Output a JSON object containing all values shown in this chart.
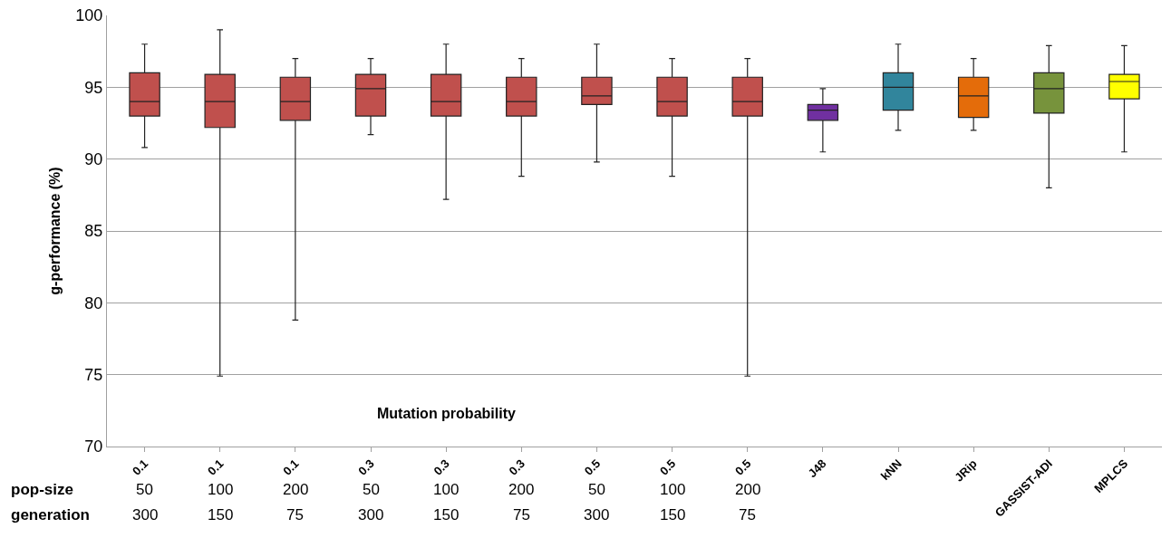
{
  "chart_data": {
    "type": "box",
    "ylabel": "g-performance (%)",
    "categories": [
      "0.1",
      "0.1",
      "0.1",
      "0.3",
      "0.3",
      "0.3",
      "0.5",
      "0.5",
      "0.5",
      "J48",
      "kNN",
      "JRip",
      "GASSIST-ADI",
      "MPLCS"
    ],
    "boxes": [
      {
        "low": 90.8,
        "q1": 93,
        "median": 94,
        "q3": 96,
        "high": 98
      },
      {
        "low": 74.9,
        "q1": 92.2,
        "median": 94,
        "q3": 95.9,
        "high": 99
      },
      {
        "low": 78.8,
        "q1": 92.7,
        "median": 94,
        "q3": 95.7,
        "high": 97
      },
      {
        "low": 91.7,
        "q1": 93,
        "median": 94.9,
        "q3": 95.9,
        "high": 97
      },
      {
        "low": 87.2,
        "q1": 93,
        "median": 94,
        "q3": 95.9,
        "high": 98
      },
      {
        "low": 88.8,
        "q1": 93,
        "median": 94,
        "q3": 95.7,
        "high": 97
      },
      {
        "low": 89.8,
        "q1": 93.8,
        "median": 94.4,
        "q3": 95.7,
        "high": 98
      },
      {
        "low": 88.8,
        "q1": 93,
        "median": 94,
        "q3": 95.7,
        "high": 97
      },
      {
        "low": 74.9,
        "q1": 93,
        "median": 94,
        "q3": 95.7,
        "high": 97
      },
      {
        "low": 90.5,
        "q1": 92.7,
        "median": 93.4,
        "q3": 93.8,
        "high": 94.9
      },
      {
        "low": 92,
        "q1": 93.4,
        "median": 95,
        "q3": 96,
        "high": 98
      },
      {
        "low": 92,
        "q1": 92.9,
        "median": 94.4,
        "q3": 95.7,
        "high": 97
      },
      {
        "low": 88,
        "q1": 93.2,
        "median": 94.9,
        "q3": 96,
        "high": 97.9
      },
      {
        "low": 90.5,
        "q1": 94.2,
        "median": 95.4,
        "q3": 95.9,
        "high": 97.9
      }
    ],
    "colors": [
      "#c0504d",
      "#c0504d",
      "#c0504d",
      "#c0504d",
      "#c0504d",
      "#c0504d",
      "#c0504d",
      "#c0504d",
      "#c0504d",
      "#7030a0",
      "#31859c",
      "#e46c0a",
      "#77933c",
      "#ffff00"
    ],
    "ylim": [
      70,
      100
    ],
    "yticks": [
      70,
      75,
      80,
      85,
      90,
      95,
      100
    ],
    "grid": "y",
    "annotations": [
      "Mutation probability",
      "pop-size",
      "50",
      "100",
      "200",
      "50",
      "100",
      "200",
      "50",
      "100",
      "200",
      "generation",
      "300",
      "150",
      "75",
      "300",
      "150",
      "75",
      "300",
      "150",
      "75"
    ]
  }
}
